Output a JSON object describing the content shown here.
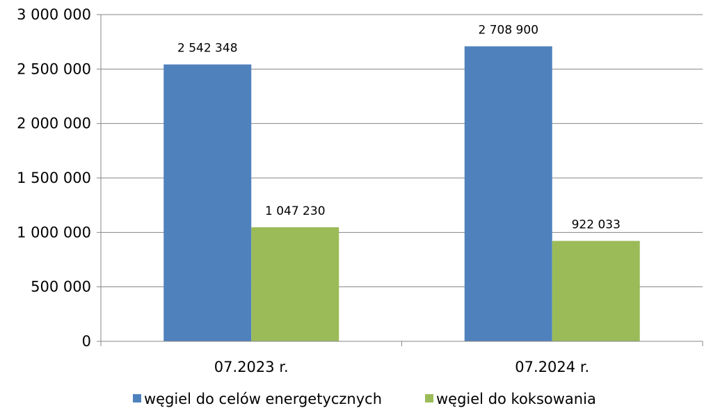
{
  "chart_data": {
    "type": "bar",
    "categories": [
      "07.2023 r.",
      "07.2024 r."
    ],
    "series": [
      {
        "name": "węgiel do celów energetycznych",
        "values": [
          2542348,
          2708900
        ],
        "labels": [
          "2 542 348",
          "2 708 900"
        ],
        "color": "#4f81bd"
      },
      {
        "name": "węgiel do koksowania",
        "values": [
          1047230,
          922033
        ],
        "labels": [
          "1 047 230",
          "922 033"
        ],
        "color": "#9bbb59"
      }
    ],
    "ylim": [
      0,
      3000000
    ],
    "yticks": [
      0,
      500000,
      1000000,
      1500000,
      2000000,
      2500000,
      3000000
    ],
    "ytick_labels": [
      "0",
      "500 000",
      "1 000 000",
      "1 500 000",
      "2 000 000",
      "2 500 000",
      "3 000 000"
    ],
    "grid": true,
    "legend_position": "bottom",
    "title": "",
    "xlabel": "",
    "ylabel": ""
  }
}
